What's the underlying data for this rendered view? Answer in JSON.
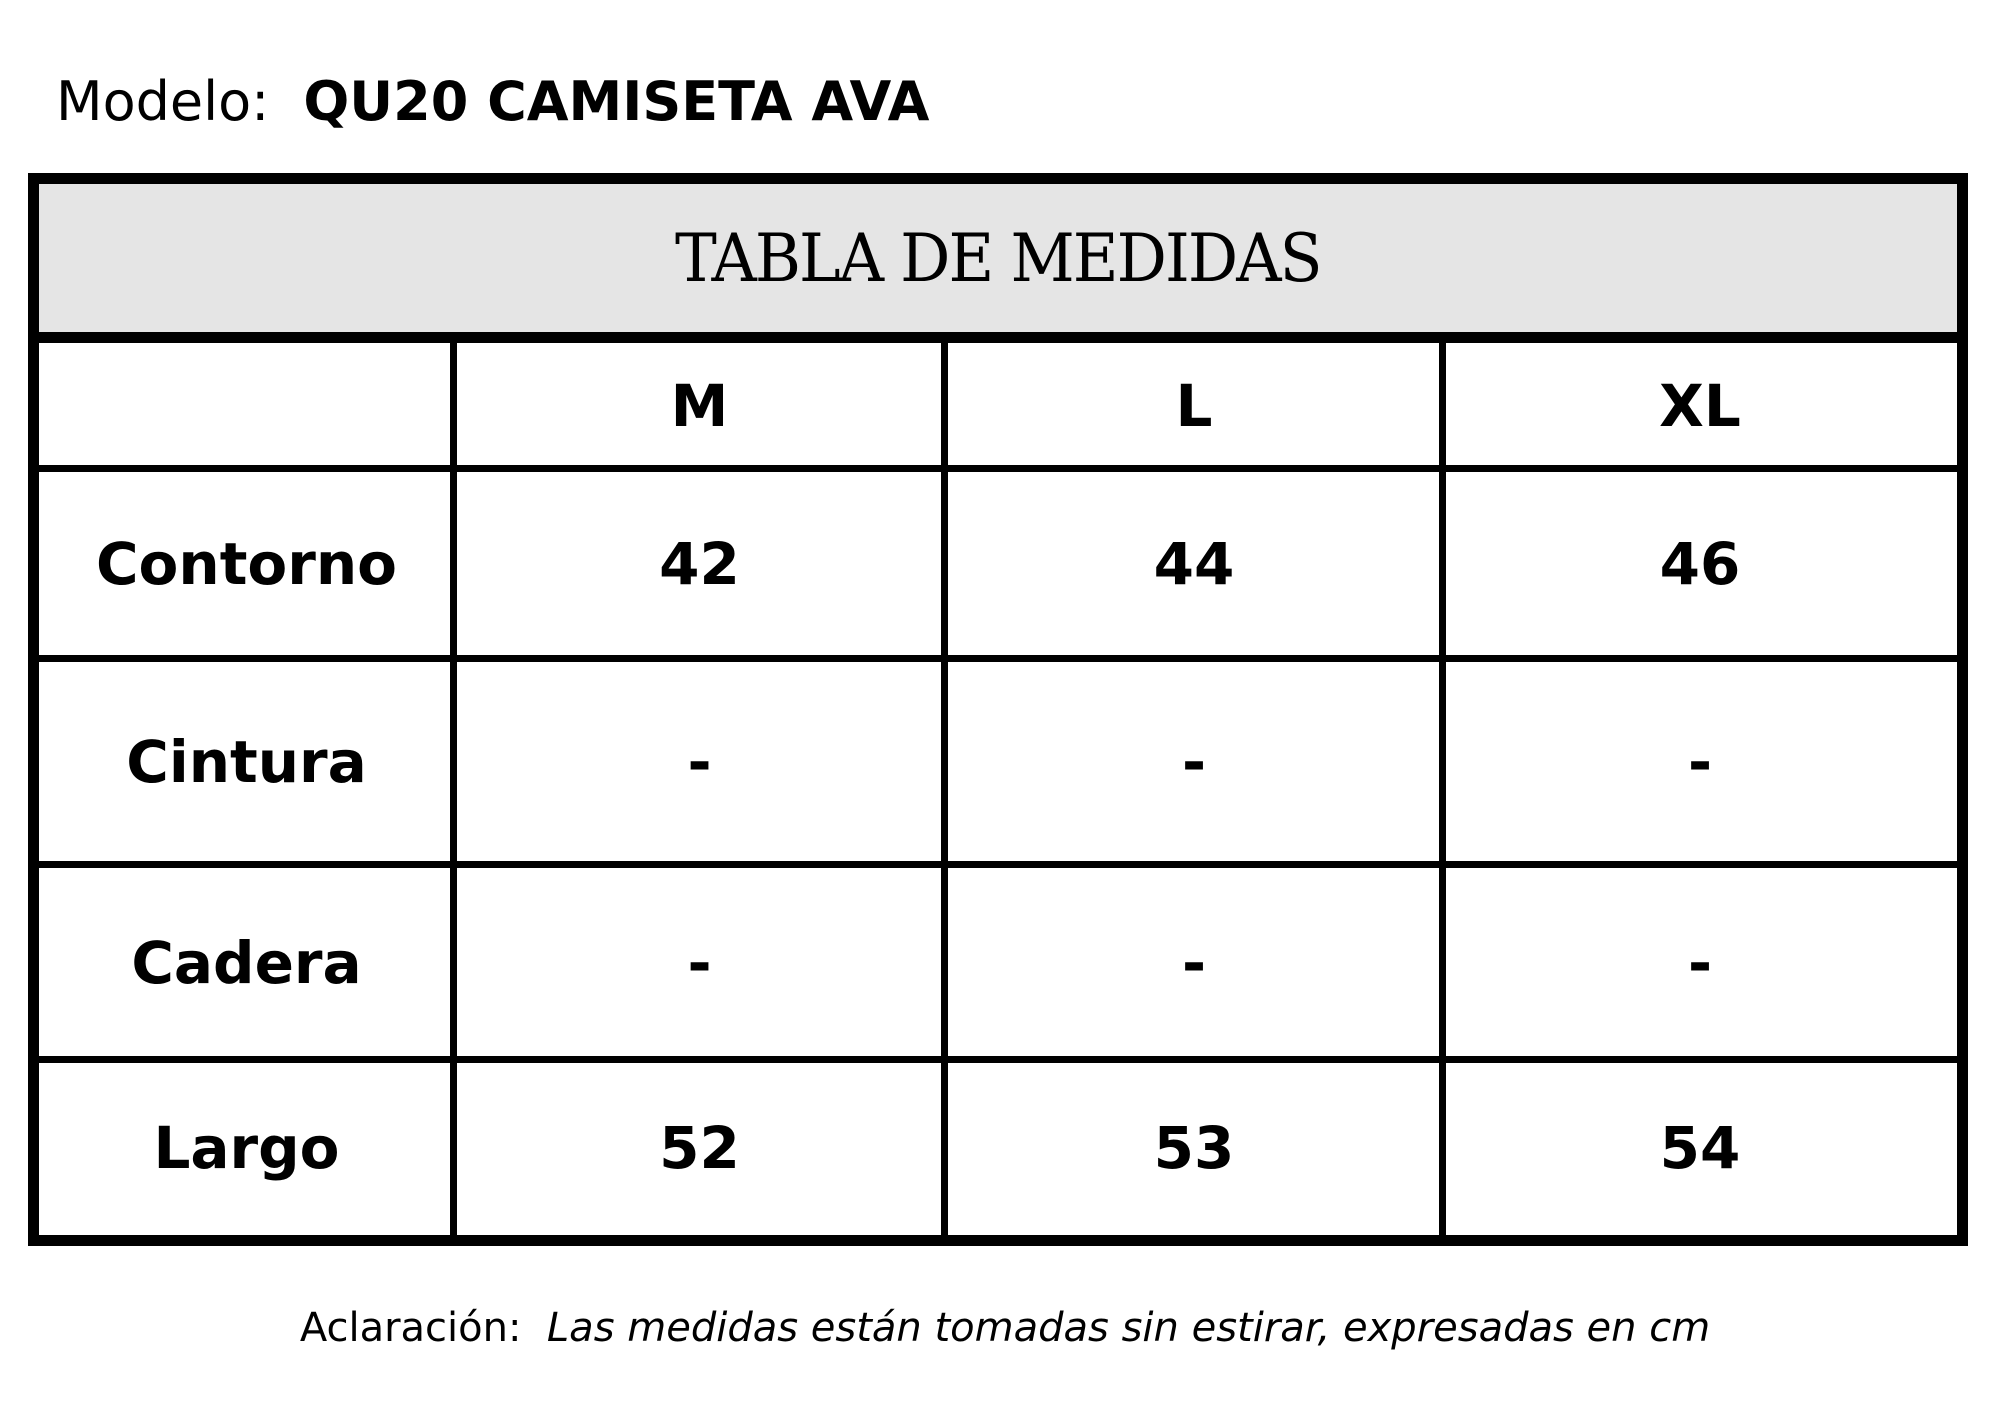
{
  "model": {
    "label": "Modelo:",
    "value": "QU20 CAMISETA AVA"
  },
  "table": {
    "title": "TABLA DE MEDIDAS",
    "columns": [
      "",
      "M",
      "L",
      "XL"
    ],
    "rows": [
      {
        "label": "Contorno",
        "values": [
          "42",
          "44",
          "46"
        ]
      },
      {
        "label": "Cintura",
        "values": [
          "-",
          "-",
          "-"
        ]
      },
      {
        "label": "Cadera",
        "values": [
          "-",
          "-",
          "-"
        ]
      },
      {
        "label": "Largo",
        "values": [
          "52",
          "53",
          "54"
        ]
      }
    ]
  },
  "footer": {
    "label": "Aclaración:",
    "note": "Las medidas están tomadas sin estirar, expresadas en cm"
  }
}
